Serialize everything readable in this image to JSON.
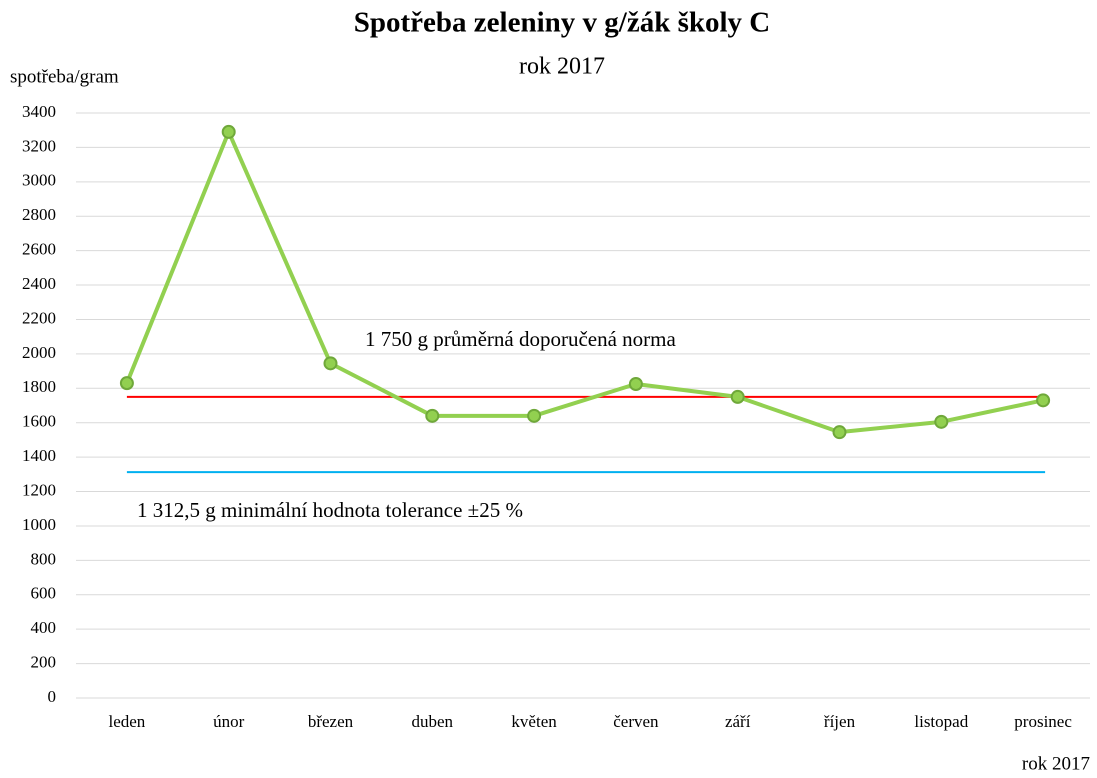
{
  "chart_data": {
    "type": "line",
    "title": "Spotřeba zeleniny v g/žák školy C",
    "subtitle": "rok 2017",
    "y_label": "spotřeba/gram",
    "x_label": "rok 2017",
    "categories": [
      "leden",
      "únor",
      "březen",
      "duben",
      "květen",
      "červen",
      "září",
      "říjen",
      "listopad",
      "prosinec"
    ],
    "series": [
      {
        "color": "#92d050",
        "values": [
          1830,
          3290,
          1945,
          1640,
          1640,
          1825,
          1750,
          1545,
          1605,
          1730
        ]
      }
    ],
    "reference_lines": [
      {
        "value": 1750,
        "label": "1 750 g průměrná doporučená norma",
        "color": "#ff0000"
      },
      {
        "value": 1312.5,
        "label": "1 312,5 g minimální hodnota tolerance ±25 %",
        "color": "#00b0f0"
      }
    ],
    "ylim": [
      0,
      3400
    ],
    "yticks": [
      0,
      200,
      400,
      600,
      800,
      1000,
      1200,
      1400,
      1600,
      1800,
      2000,
      2200,
      2400,
      2600,
      2800,
      3000,
      3200,
      3400
    ],
    "grid": true
  }
}
